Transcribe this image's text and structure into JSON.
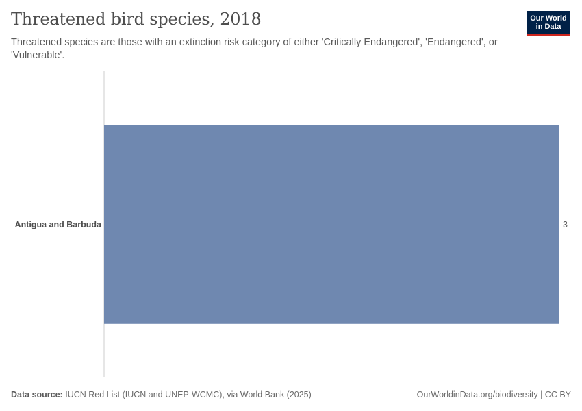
{
  "header": {
    "title": "Threatened bird species, 2018",
    "subtitle": "Threatened species are those with an extinction risk category of either 'Critically Endangered', 'Endangered', or 'Vulnerable'."
  },
  "logo": {
    "line1": "Our World",
    "line2": "in Data"
  },
  "footer": {
    "source_label": "Data source:",
    "source_text": "IUCN Red List (IUCN and UNEP-WCMC), via World Bank (2025)",
    "url_license": "OurWorldinData.org/biodiversity | CC BY"
  },
  "colors": {
    "bar": "#6f88b0",
    "axis_line": "#cccccc",
    "logo_bg": "#002147",
    "logo_accent": "#ce261e"
  },
  "chart_data": {
    "type": "bar",
    "orientation": "horizontal",
    "categories": [
      "Antigua and Barbuda"
    ],
    "values": [
      3
    ],
    "value_labels": [
      "3"
    ],
    "xlim": [
      0,
      3
    ],
    "grid": false,
    "legend": "none"
  }
}
